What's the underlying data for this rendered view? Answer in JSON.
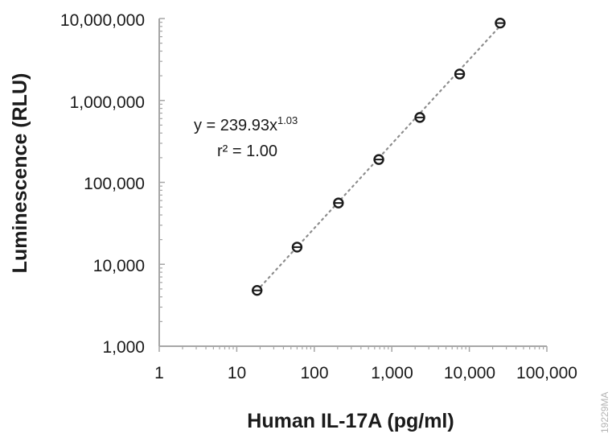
{
  "chart_data": {
    "type": "scatter",
    "title": "",
    "xlabel": "Human IL-17A (pg/ml)",
    "ylabel": "Luminescence (RLU)",
    "x_scale": "log",
    "y_scale": "log",
    "xlim": [
      1,
      100000
    ],
    "ylim": [
      1000,
      10000000
    ],
    "x_ticks": [
      1,
      10,
      100,
      1000,
      10000,
      100000
    ],
    "x_tick_labels": [
      "1",
      "10",
      "100",
      "1,000",
      "10,000",
      "100,000"
    ],
    "y_ticks": [
      1000,
      10000,
      100000,
      1000000,
      10000000
    ],
    "y_tick_labels": [
      "1,000",
      "10,000",
      "100,000",
      "1,000,000",
      "10,000,000"
    ],
    "grid": false,
    "legend": "none",
    "series": [
      {
        "x": [
          18.3,
          60,
          205,
          680,
          2300,
          7500,
          25000
        ],
        "y": [
          4800,
          16200,
          56000,
          190000,
          620000,
          2100000,
          8800000
        ],
        "marker": "open-circle-with-error-bar",
        "color": "#1a1a1a"
      }
    ],
    "fit": {
      "type": "power",
      "coefficient": 239.93,
      "exponent": 1.03,
      "style": "dotted",
      "color": "#8c8c8c",
      "x_range": [
        18.3,
        25000
      ]
    },
    "annotations": {
      "equation_main": "y = 239.93x",
      "equation_exponent": "1.03",
      "r_squared": "r² = 1.00"
    },
    "watermark": "19229MA"
  }
}
